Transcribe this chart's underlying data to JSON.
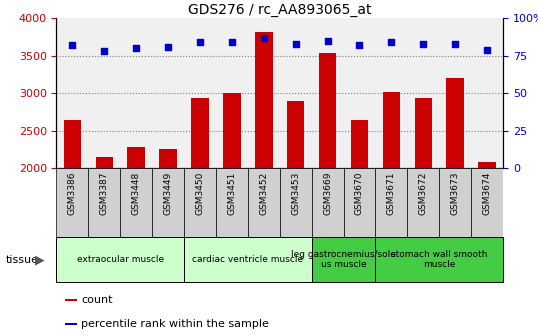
{
  "title": "GDS276 / rc_AA893065_at",
  "samples": [
    "GSM3386",
    "GSM3387",
    "GSM3448",
    "GSM3449",
    "GSM3450",
    "GSM3451",
    "GSM3452",
    "GSM3453",
    "GSM3669",
    "GSM3670",
    "GSM3671",
    "GSM3672",
    "GSM3673",
    "GSM3674"
  ],
  "counts": [
    2640,
    2150,
    2280,
    2260,
    2940,
    3000,
    3820,
    2900,
    3540,
    2640,
    3010,
    2940,
    3200,
    2080
  ],
  "percentiles": [
    82,
    78,
    80,
    81,
    84,
    84,
    87,
    83,
    85,
    82,
    84,
    83,
    83,
    79
  ],
  "bar_color": "#cc0000",
  "dot_color": "#0000cc",
  "ylim_left": [
    2000,
    4000
  ],
  "ylim_right": [
    0,
    100
  ],
  "yticks_left": [
    2000,
    2500,
    3000,
    3500,
    4000
  ],
  "yticks_right": [
    0,
    25,
    50,
    75,
    100
  ],
  "grid_dotted_values": [
    2500,
    3000,
    3500
  ],
  "tissue_groups": [
    {
      "label": "extraocular muscle",
      "start": 0,
      "end": 3,
      "color": "#ccffcc"
    },
    {
      "label": "cardiac ventricle muscle",
      "start": 4,
      "end": 7,
      "color": "#ccffcc"
    },
    {
      "label": "leg gastrocnemius/sole\nus muscle",
      "start": 8,
      "end": 9,
      "color": "#44cc44"
    },
    {
      "label": "stomach wall smooth\nmuscle",
      "start": 10,
      "end": 13,
      "color": "#44cc44"
    }
  ],
  "tissue_label": "tissue",
  "legend_count_label": "count",
  "legend_pct_label": "percentile rank within the sample",
  "plot_bg_color": "#f0f0f0",
  "xtick_box_color": "#d0d0d0"
}
